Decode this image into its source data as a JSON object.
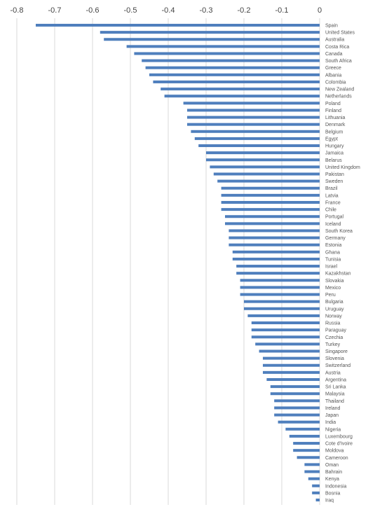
{
  "chart_data": {
    "type": "bar",
    "orientation": "horizontal",
    "title": "",
    "xlabel": "",
    "ylabel": "",
    "xlim": [
      -0.8,
      0
    ],
    "x_ticks": [
      "-0.8",
      "-0.7",
      "-0.6",
      "-0.5",
      "-0.4",
      "-0.3",
      "-0.2",
      "-0.1",
      "0"
    ],
    "x_tick_values": [
      -0.8,
      -0.7,
      -0.6,
      -0.5,
      -0.4,
      -0.3,
      -0.2,
      -0.1,
      0
    ],
    "grid": true,
    "legend": "none",
    "bar_color": "#4f7fbd",
    "categories": [
      "Spain",
      "United States",
      "Australia",
      "Costa Rica",
      "Canada",
      "South Africa",
      "Greece",
      "Albania",
      "Colombia",
      "New Zealand",
      "Netherlands",
      "Poland",
      "Finland",
      "Lithuania",
      "Denmark",
      "Belgium",
      "Egypt",
      "Hungary",
      "Jamaica",
      "Belarus",
      "United Kingdom",
      "Pakistan",
      "Sweden",
      "Brazil",
      "Latvia",
      "France",
      "Chile",
      "Portugal",
      "Iceland",
      "South Korea",
      "Germany",
      "Estonia",
      "Ghana",
      "Tunisia",
      "Israel",
      "Kazakhstan",
      "Slovakia",
      "Mexico",
      "Peru",
      "Bulgaria",
      "Uruguay",
      "Norway",
      "Russia",
      "Paraguay",
      "Czechia",
      "Turkey",
      "Singapore",
      "Slovenia",
      "Switzerland",
      "Austria",
      "Argentina",
      "Sri Lanka",
      "Malaysia",
      "Thailand",
      "Ireland",
      "Japan",
      "India",
      "Nigeria",
      "Luxembourg",
      "Cote d'Ivoire",
      "Moldova",
      "Cameroon",
      "Oman",
      "Bahrain",
      "Kenya",
      "Indonesia",
      "Bosnia",
      "Iraq"
    ],
    "values": [
      -0.75,
      -0.58,
      -0.57,
      -0.51,
      -0.49,
      -0.47,
      -0.46,
      -0.45,
      -0.44,
      -0.42,
      -0.41,
      -0.36,
      -0.35,
      -0.35,
      -0.35,
      -0.34,
      -0.33,
      -0.32,
      -0.3,
      -0.3,
      -0.29,
      -0.28,
      -0.27,
      -0.26,
      -0.26,
      -0.26,
      -0.26,
      -0.25,
      -0.25,
      -0.24,
      -0.24,
      -0.24,
      -0.23,
      -0.23,
      -0.22,
      -0.22,
      -0.21,
      -0.21,
      -0.21,
      -0.2,
      -0.2,
      -0.19,
      -0.18,
      -0.18,
      -0.18,
      -0.17,
      -0.16,
      -0.15,
      -0.15,
      -0.15,
      -0.14,
      -0.13,
      -0.13,
      -0.12,
      -0.12,
      -0.12,
      -0.11,
      -0.09,
      -0.08,
      -0.07,
      -0.07,
      -0.06,
      -0.04,
      -0.04,
      -0.03,
      -0.02,
      -0.02,
      -0.01
    ]
  }
}
